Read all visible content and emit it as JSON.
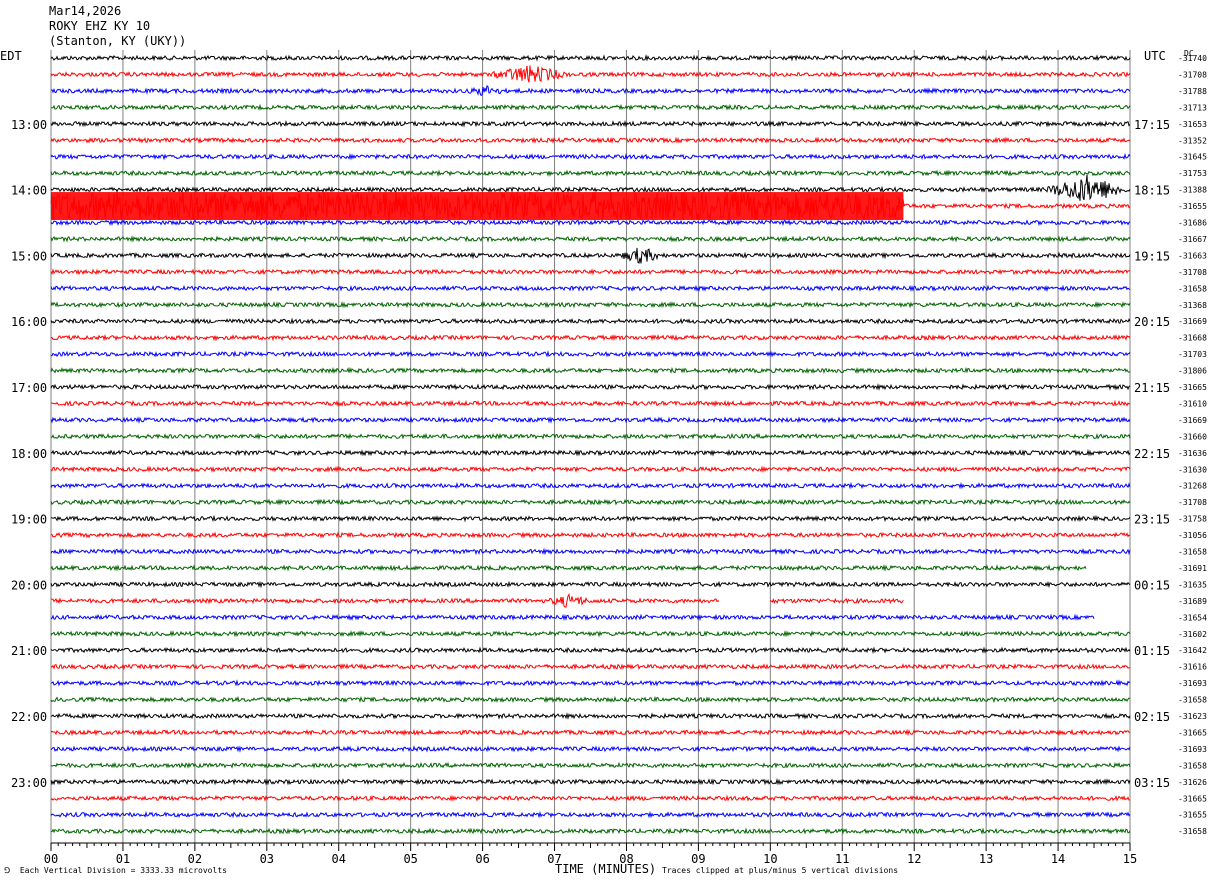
{
  "header": {
    "date": "Mar14,2026",
    "station": "ROKY EHZ KY 10",
    "location": "(Stanton, KY (UKY))",
    "left_zone": "EDT",
    "right_zone": "UTC",
    "dc_label": "DC"
  },
  "footer": {
    "left_note": "Each Vertical Division = 3333.33 microvolts",
    "right_note": "Traces clipped at plus/minus 5 vertical divisions",
    "corner_mark": "⅁"
  },
  "colors": {
    "trace_cycle": [
      "#000000",
      "#ff0000",
      "#0000ff",
      "#006400"
    ],
    "grid": "#808080"
  },
  "chart_data": {
    "type": "line",
    "title": "",
    "xlabel": "TIME (MINUTES)",
    "ylabel": "",
    "xlim": [
      0,
      15
    ],
    "x_ticks": [
      "00",
      "01",
      "02",
      "03",
      "04",
      "05",
      "06",
      "07",
      "08",
      "09",
      "10",
      "11",
      "12",
      "13",
      "14",
      "15"
    ],
    "rows_per_hour": 4,
    "left_hour_labels": [
      "13:00",
      "14:00",
      "15:00",
      "16:00",
      "17:00",
      "18:00",
      "19:00",
      "20:00",
      "21:00",
      "22:00",
      "23:00"
    ],
    "right_hour_labels": [
      "17:15",
      "18:15",
      "19:15",
      "20:15",
      "21:15",
      "22:15",
      "23:15",
      "00:15",
      "01:15",
      "02:15",
      "03:15"
    ],
    "dc_offsets": [
      "-31740",
      "-31708",
      "-31788",
      "-31713",
      "-31653",
      "-31352",
      "-31645",
      "-31753",
      "-31388",
      "-31655",
      "-31686",
      "-31667",
      "-31663",
      "-31708",
      "-31658",
      "-31368",
      "-31669",
      "-31668",
      "-31703",
      "-31806",
      "-31665",
      "-31610",
      "-31669",
      "-31660",
      "-31636",
      "-31630",
      "-31268",
      "-31708",
      "-31758",
      "-31056",
      "-31658",
      "-31691",
      "-31635",
      "-31689",
      "-31654",
      "-31602",
      "-31642",
      "-31616",
      "-31693",
      "-31658",
      "-31623",
      "-31665",
      "-31693",
      "-31658",
      "-31626",
      "-31665",
      "-31655",
      "-31658"
    ],
    "events": [
      {
        "row": 1,
        "start_min": 6.1,
        "end_min": 7.2,
        "amp": 8
      },
      {
        "row": 2,
        "start_min": 5.8,
        "end_min": 6.3,
        "amp": 4
      },
      {
        "row": 8,
        "start_min": 13.8,
        "end_min": 15.0,
        "amp": 13
      },
      {
        "row": 9,
        "start_min": 0.0,
        "end_min": 11.85,
        "amp": 14,
        "clipped": true
      },
      {
        "row": 12,
        "start_min": 7.9,
        "end_min": 8.5,
        "amp": 7
      },
      {
        "row": 33,
        "start_min": 6.9,
        "end_min": 7.5,
        "amp": 5
      }
    ],
    "trace_ends": [
      {
        "row": 31,
        "end_min": 14.4
      },
      {
        "row": 33,
        "end_min": 9.3,
        "resume_min": 10.0,
        "resume_end_min": 11.85
      },
      {
        "row": 34,
        "end_min": 14.5
      }
    ]
  }
}
